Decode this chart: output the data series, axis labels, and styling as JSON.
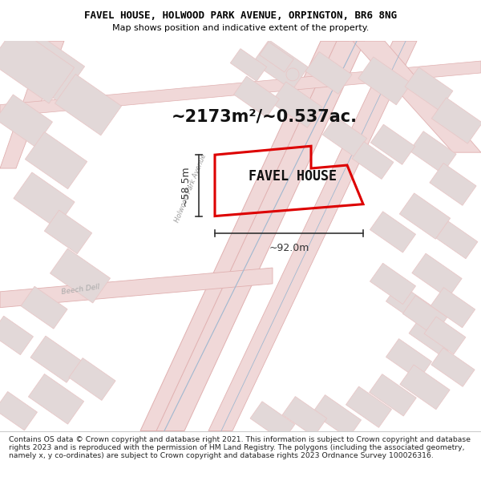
{
  "title": "FAVEL HOUSE, HOLWOOD PARK AVENUE, ORPINGTON, BR6 8NG",
  "subtitle": "Map shows position and indicative extent of the property.",
  "footer": "Contains OS data © Crown copyright and database right 2021. This information is subject to Crown copyright and database rights 2023 and is reproduced with the permission of HM Land Registry. The polygons (including the associated geometry, namely x, y co-ordinates) are subject to Crown copyright and database rights 2023 Ordnance Survey 100026316.",
  "area_text": "~2173m²/~0.537ac.",
  "property_label": "FAVEL HOUSE",
  "dim_width": "~92.0m",
  "dim_height": "~58.5m",
  "map_bg": "#f5eeee",
  "road_fill": "#f0d8d8",
  "road_edge": "#e0b0b0",
  "building_fill": "#e2d8d8",
  "building_edge": "#e8c8c8",
  "property_color": "#dd0000",
  "dim_color": "#333333",
  "street_label1": "Holwood Park Avenue",
  "street_label2": "Beech Dell",
  "blue_line_color": "#a0b8d0",
  "title_color": "#000000",
  "footer_color": "#222222",
  "sep_line_color": "#cccccc"
}
